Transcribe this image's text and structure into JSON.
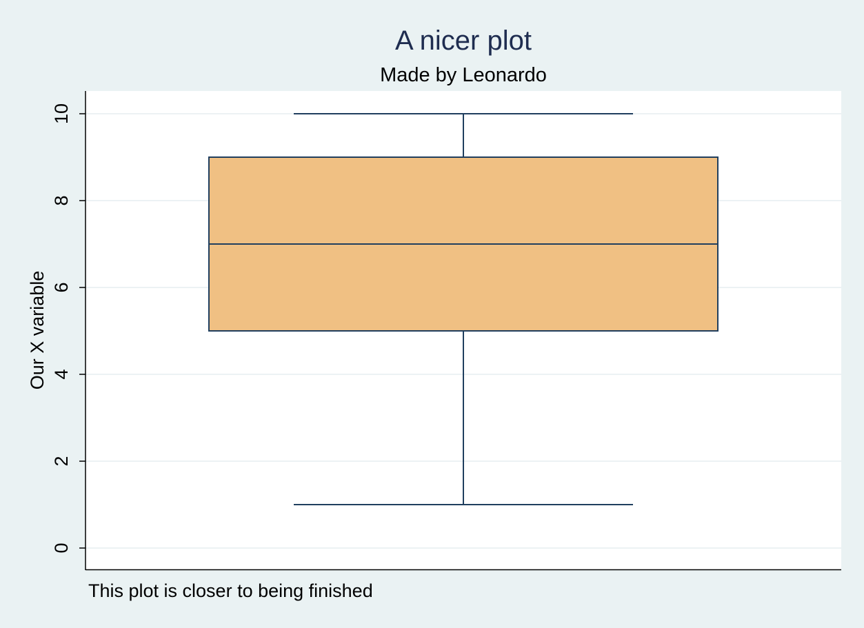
{
  "chart_data": {
    "type": "box",
    "title": "A nicer plot",
    "subtitle": "Made by Leonardo",
    "note": "This plot is closer to being finished",
    "ylabel": "Our X variable",
    "xlabel": "",
    "ylim": [
      0,
      10
    ],
    "yticks": [
      "0",
      "2",
      "4",
      "6",
      "8",
      "10"
    ],
    "grid": true,
    "series": [
      {
        "min": 1,
        "q1": 5,
        "median": 7,
        "q3": 9,
        "max": 10
      }
    ]
  },
  "colors": {
    "background": "#eaf2f3",
    "plot_area": "#ffffff",
    "grid": "#e6eef0",
    "box_fill": "#f0c083",
    "box_stroke": "#1f3e5e",
    "title": "#1f2d50",
    "axis": "#000000"
  }
}
